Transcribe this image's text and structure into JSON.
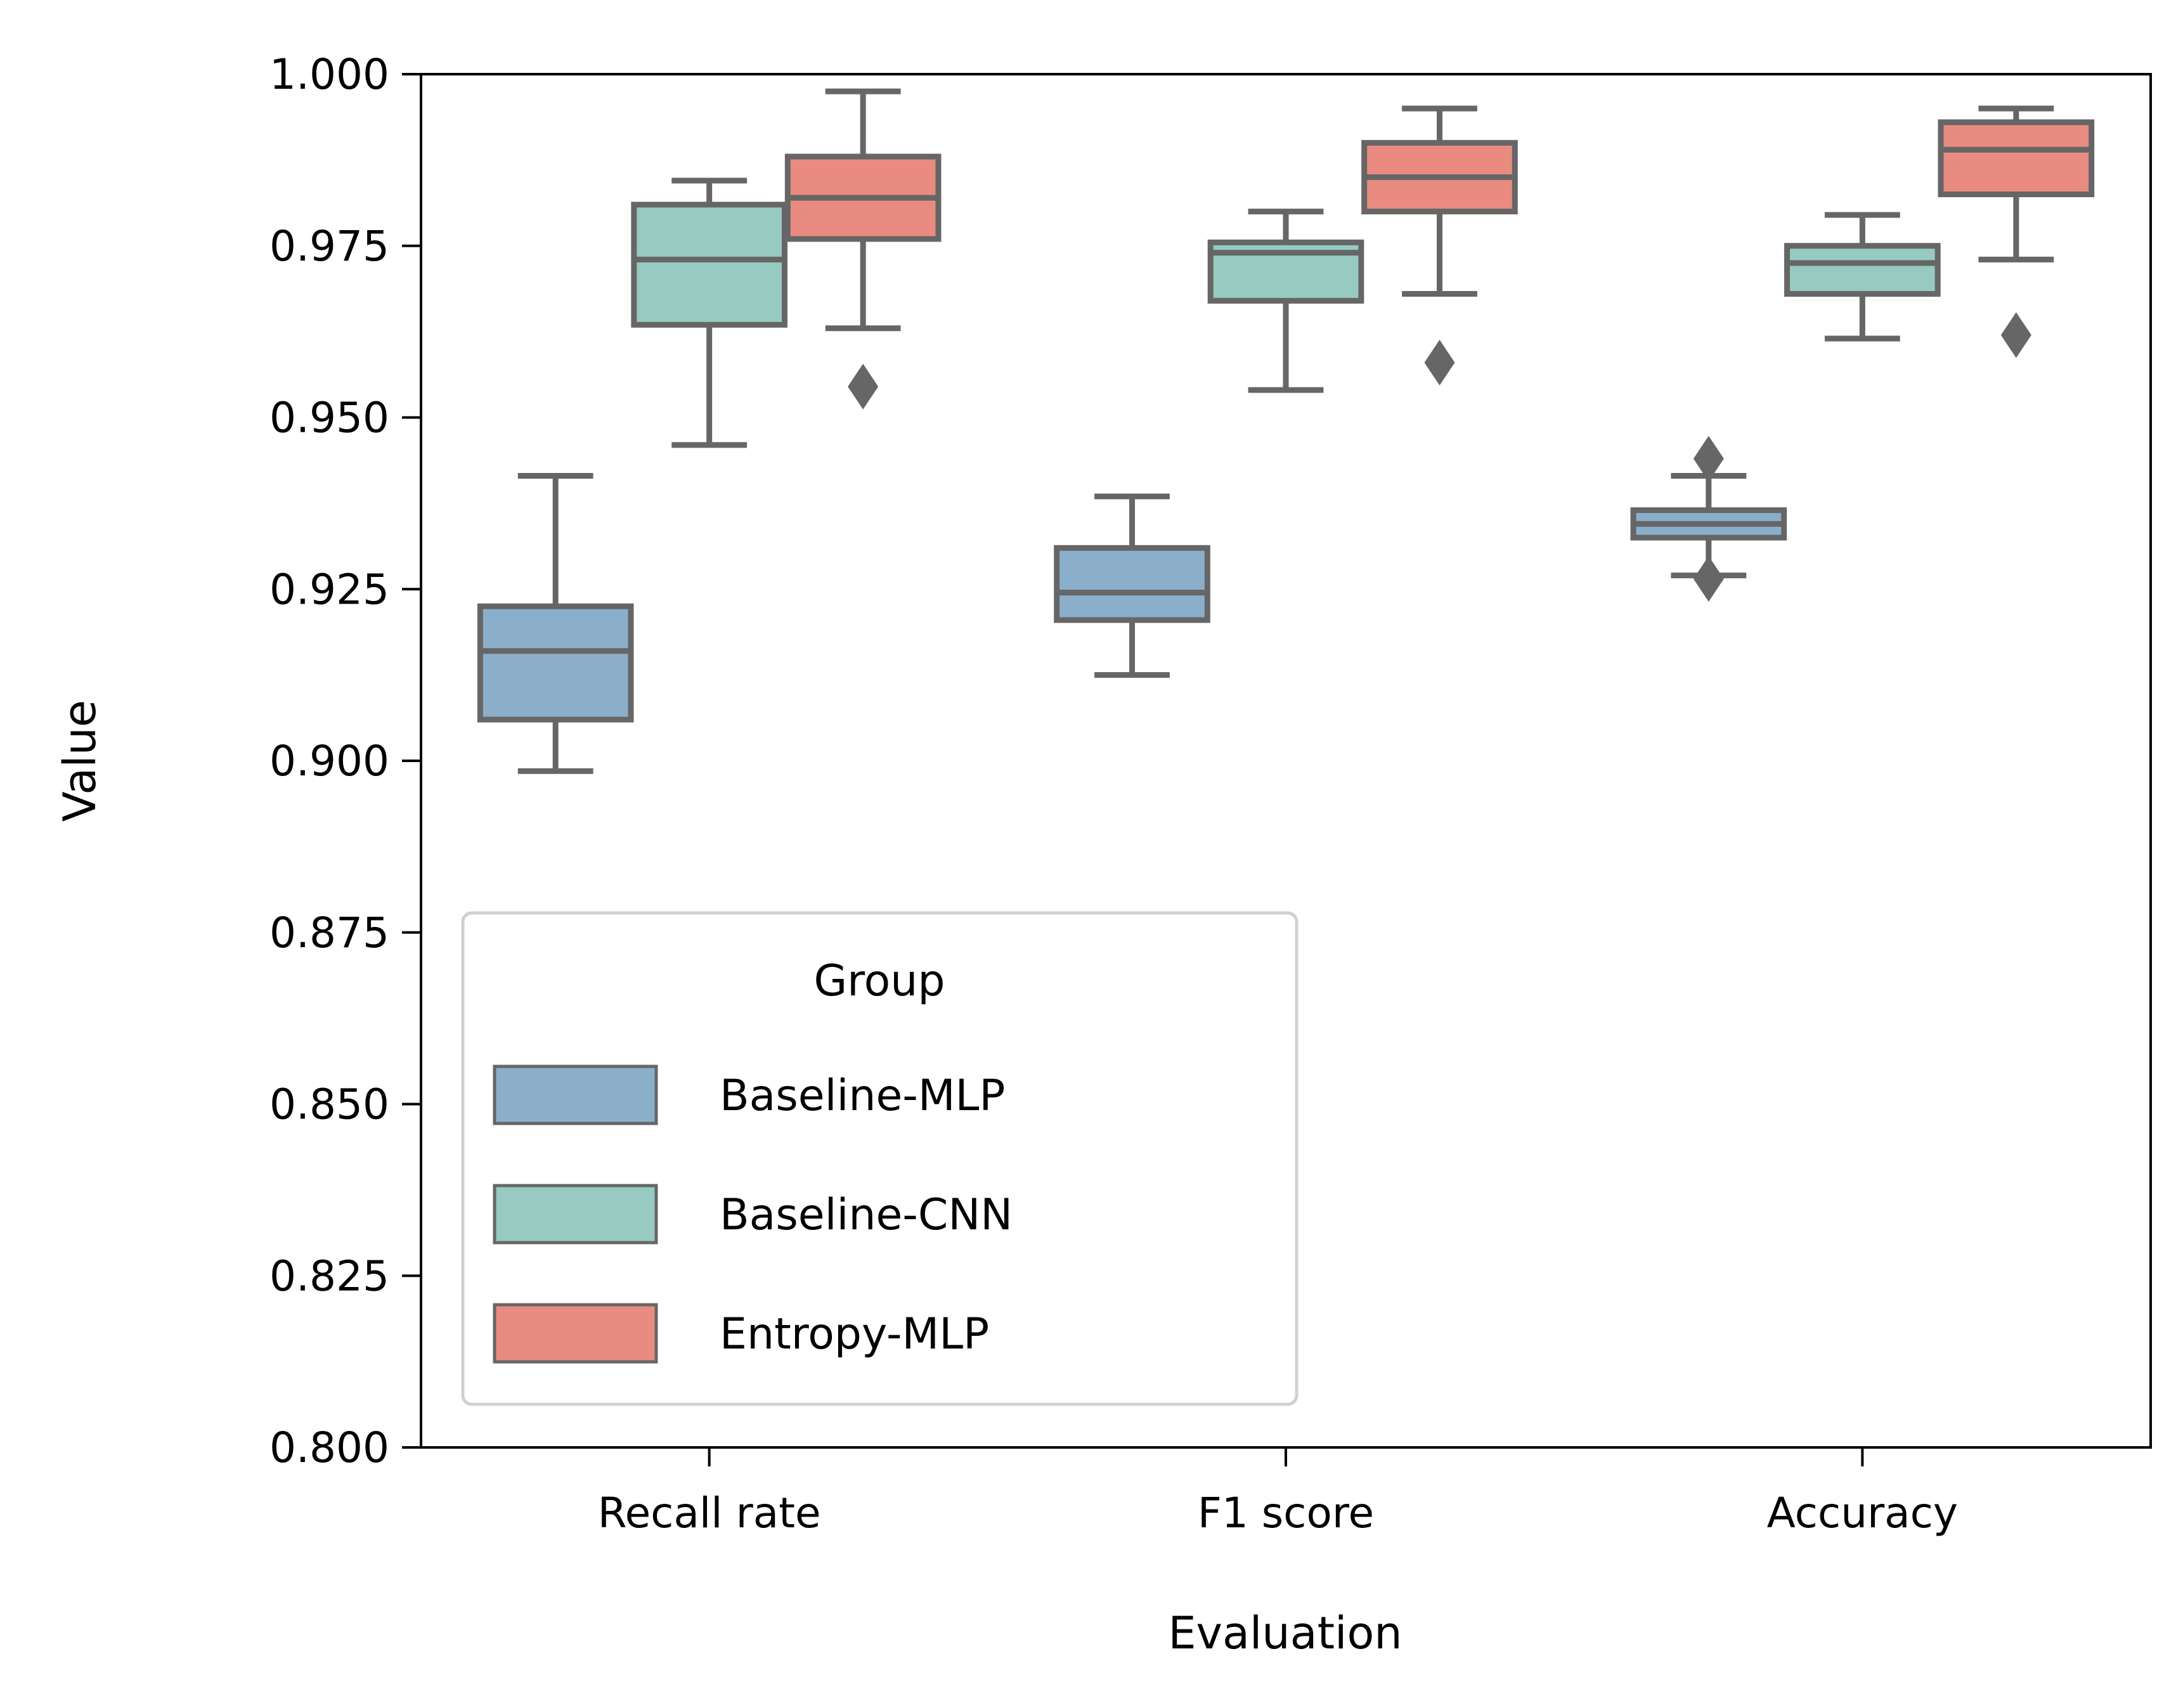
{
  "chart_data": {
    "type": "boxplot",
    "xlabel": "Evaluation",
    "ylabel": "Value",
    "ylim": [
      0.8,
      1.0
    ],
    "yticks": [
      "0.800",
      "0.825",
      "0.850",
      "0.875",
      "0.900",
      "0.925",
      "0.950",
      "0.975",
      "1.000"
    ],
    "ytick_values": [
      0.8,
      0.825,
      0.85,
      0.875,
      0.9,
      0.925,
      0.95,
      0.975,
      1.0
    ],
    "categories": [
      "Recall rate",
      "F1 score",
      "Accuracy"
    ],
    "legend": {
      "title": "Group",
      "position": "lower-left",
      "entries": [
        "Baseline-MLP",
        "Baseline-CNN",
        "Entropy-MLP"
      ]
    },
    "grid": false,
    "colors": {
      "Baseline-MLP": "#8bafcb",
      "Baseline-CNN": "#97cac1",
      "Entropy-MLP": "#e98b80",
      "edge": "#666666"
    },
    "series": [
      {
        "name": "Baseline-MLP",
        "boxes": [
          {
            "whislo": 0.8985,
            "q1": 0.906,
            "med": 0.916,
            "q3": 0.9225,
            "whishi": 0.9415,
            "fliers": []
          },
          {
            "whislo": 0.9125,
            "q1": 0.9205,
            "med": 0.9245,
            "q3": 0.931,
            "whishi": 0.9385,
            "fliers": []
          },
          {
            "whislo": 0.927,
            "q1": 0.9325,
            "med": 0.9345,
            "q3": 0.9365,
            "whishi": 0.9415,
            "fliers": [
              0.944,
              0.9265
            ]
          }
        ]
      },
      {
        "name": "Baseline-CNN",
        "boxes": [
          {
            "whislo": 0.946,
            "q1": 0.9635,
            "med": 0.973,
            "q3": 0.981,
            "whishi": 0.9845,
            "fliers": []
          },
          {
            "whislo": 0.954,
            "q1": 0.967,
            "med": 0.974,
            "q3": 0.9755,
            "whishi": 0.98,
            "fliers": []
          },
          {
            "whislo": 0.9615,
            "q1": 0.968,
            "med": 0.9725,
            "q3": 0.975,
            "whishi": 0.9795,
            "fliers": []
          }
        ]
      },
      {
        "name": "Entropy-MLP",
        "boxes": [
          {
            "whislo": 0.963,
            "q1": 0.976,
            "med": 0.982,
            "q3": 0.988,
            "whishi": 0.9975,
            "fliers": [
              0.9545
            ]
          },
          {
            "whislo": 0.968,
            "q1": 0.98,
            "med": 0.985,
            "q3": 0.99,
            "whishi": 0.995,
            "fliers": [
              0.958
            ]
          },
          {
            "whislo": 0.973,
            "q1": 0.9825,
            "med": 0.989,
            "q3": 0.993,
            "whishi": 0.995,
            "fliers": [
              0.962
            ]
          }
        ]
      }
    ]
  }
}
